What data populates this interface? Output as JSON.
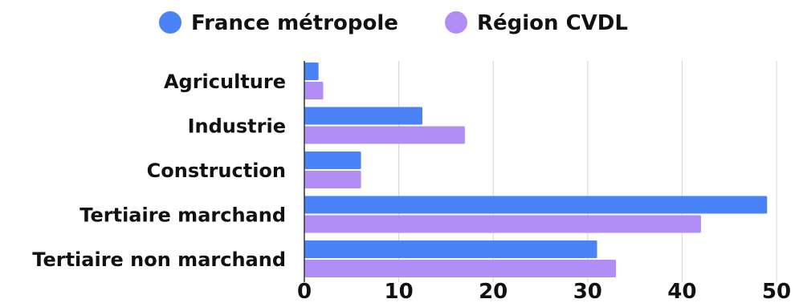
{
  "chart_data": {
    "type": "bar",
    "orientation": "horizontal",
    "title": "",
    "xlabel": "",
    "ylabel": "",
    "categories": [
      "Agriculture",
      "Industrie",
      "Construction",
      "Tertiaire marchand",
      "Tertiaire non marchand"
    ],
    "series": [
      {
        "name": "France métropole",
        "color": "#4a82f7",
        "values": [
          1.5,
          12.5,
          6.0,
          49.0,
          31.0
        ]
      },
      {
        "name": "Région CVDL",
        "color": "#b18ef6",
        "values": [
          2.0,
          17.0,
          6.0,
          42.0,
          33.0
        ]
      }
    ],
    "xlim": [
      0,
      50
    ],
    "xticks": [
      0,
      10,
      20,
      30,
      40,
      50
    ],
    "grid": true,
    "legend_position": "top"
  }
}
